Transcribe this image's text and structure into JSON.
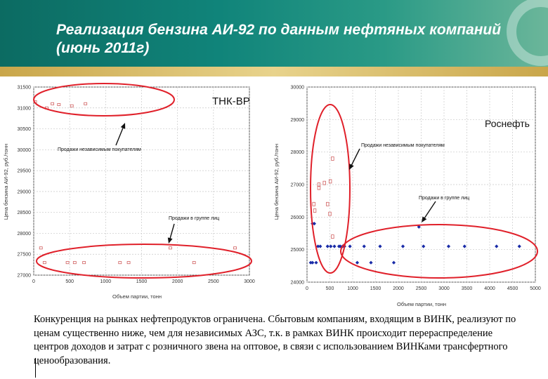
{
  "slide": {
    "title": "Реализация бензина АИ-92 по данным нефтяных компаний (июнь 2011г)",
    "caption": "Конкуренция на рынках нефтепродуктов ограничена. Сбытовым компаниям, входящим в ВИНК, реализуют по ценам существенно ниже, чем для независимых АЗС, т.к. в рамках ВИНК происходит перераспределение центров доходов и затрат с розничного звена на оптовое, в связи с использованием ВИНКами трансфертного ценообразования."
  },
  "colors": {
    "header": "#10847a",
    "highlight": "#e0202a",
    "rosneft_points": "#1a2ca8",
    "tnk_points": "#d06060"
  },
  "chart_data": [
    {
      "type": "scatter",
      "title": "ТНК-ВР",
      "xlabel": "Объем партии, тонн",
      "ylabel": "Цена бензина АИ-92, руб./тонн",
      "xlim": [
        0,
        3000
      ],
      "ylim": [
        27000,
        31500
      ],
      "xticks": [
        0,
        500,
        1000,
        1500,
        2000,
        2500,
        3000
      ],
      "xtick_labels": [
        "0",
        "500",
        "1000",
        "1500",
        "2000",
        "2500",
        "3000"
      ],
      "yticks": [
        27000,
        27500,
        28000,
        28500,
        29000,
        29500,
        30000,
        30500,
        31000,
        31500
      ],
      "ytick_labels": [
        "27000",
        "27500",
        "28000",
        "28500",
        "29000",
        "29500",
        "30000",
        "30500",
        "31000",
        "31500"
      ],
      "grid": true,
      "series": [
        {
          "marker": "square",
          "points": [
            {
              "x": 20,
              "y": 31150
            },
            {
              "x": 180,
              "y": 31000
            },
            {
              "x": 260,
              "y": 31100
            },
            {
              "x": 350,
              "y": 31080
            },
            {
              "x": 530,
              "y": 31050
            },
            {
              "x": 720,
              "y": 31100
            },
            {
              "x": 100,
              "y": 27650
            },
            {
              "x": 150,
              "y": 27300
            },
            {
              "x": 470,
              "y": 27300
            },
            {
              "x": 570,
              "y": 27300
            },
            {
              "x": 700,
              "y": 27300
            },
            {
              "x": 1200,
              "y": 27300
            },
            {
              "x": 1320,
              "y": 27300
            },
            {
              "x": 1900,
              "y": 27650
            },
            {
              "x": 2230,
              "y": 27300
            },
            {
              "x": 2800,
              "y": 27650
            }
          ]
        }
      ],
      "annotations": [
        {
          "text": "Продажи независимым покупателям"
        },
        {
          "text": "Продажи в группе лиц"
        }
      ]
    },
    {
      "type": "scatter",
      "title": "Роснефть",
      "xlabel": "Объем партии, тонн",
      "ylabel": "Цена бензина АИ-92, руб./тонн",
      "xlim": [
        0,
        5000
      ],
      "ylim": [
        24000,
        30000
      ],
      "xticks": [
        0,
        500,
        1000,
        1500,
        2000,
        2500,
        3000,
        3500,
        4000,
        4500,
        5000
      ],
      "xtick_labels": [
        "0",
        "500",
        "1000",
        "1500",
        "2000",
        "2500",
        "3000",
        "3500",
        "4000",
        "4500",
        "5000"
      ],
      "yticks": [
        24000,
        25000,
        26000,
        27000,
        28000,
        29000,
        30000
      ],
      "ytick_labels": [
        "24000",
        "25000",
        "26000",
        "27000",
        "28000",
        "29000",
        "30000"
      ],
      "grid": true,
      "series": [
        {
          "name": "independent",
          "marker": "square-open",
          "points": [
            {
              "x": 260,
              "y": 27000
            },
            {
              "x": 260,
              "y": 26900
            },
            {
              "x": 380,
              "y": 27050
            },
            {
              "x": 150,
              "y": 26400
            },
            {
              "x": 170,
              "y": 26200
            },
            {
              "x": 450,
              "y": 26400
            },
            {
              "x": 500,
              "y": 26100
            },
            {
              "x": 510,
              "y": 27100
            },
            {
              "x": 560,
              "y": 25400
            },
            {
              "x": 560,
              "y": 27800
            }
          ]
        },
        {
          "name": "group",
          "marker": "diamond",
          "points": [
            {
              "x": 80,
              "y": 24600
            },
            {
              "x": 120,
              "y": 24600
            },
            {
              "x": 200,
              "y": 24600
            },
            {
              "x": 120,
              "y": 25800
            },
            {
              "x": 160,
              "y": 25800
            },
            {
              "x": 240,
              "y": 25100
            },
            {
              "x": 290,
              "y": 25100
            },
            {
              "x": 450,
              "y": 25100
            },
            {
              "x": 520,
              "y": 25100
            },
            {
              "x": 600,
              "y": 25100
            },
            {
              "x": 700,
              "y": 25100
            },
            {
              "x": 730,
              "y": 25100
            },
            {
              "x": 780,
              "y": 25100
            },
            {
              "x": 820,
              "y": 25100
            },
            {
              "x": 940,
              "y": 25100
            },
            {
              "x": 1100,
              "y": 24600
            },
            {
              "x": 1250,
              "y": 25100
            },
            {
              "x": 1400,
              "y": 24600
            },
            {
              "x": 1600,
              "y": 25100
            },
            {
              "x": 1900,
              "y": 24600
            },
            {
              "x": 2100,
              "y": 25100
            },
            {
              "x": 2450,
              "y": 25700
            },
            {
              "x": 2550,
              "y": 25100
            },
            {
              "x": 3100,
              "y": 25100
            },
            {
              "x": 3450,
              "y": 25100
            },
            {
              "x": 4150,
              "y": 25100
            },
            {
              "x": 4650,
              "y": 25100
            }
          ]
        }
      ],
      "annotations": [
        {
          "text": "Продажи независимым покупателям"
        },
        {
          "text": "Продажи в группе лиц"
        }
      ]
    }
  ]
}
